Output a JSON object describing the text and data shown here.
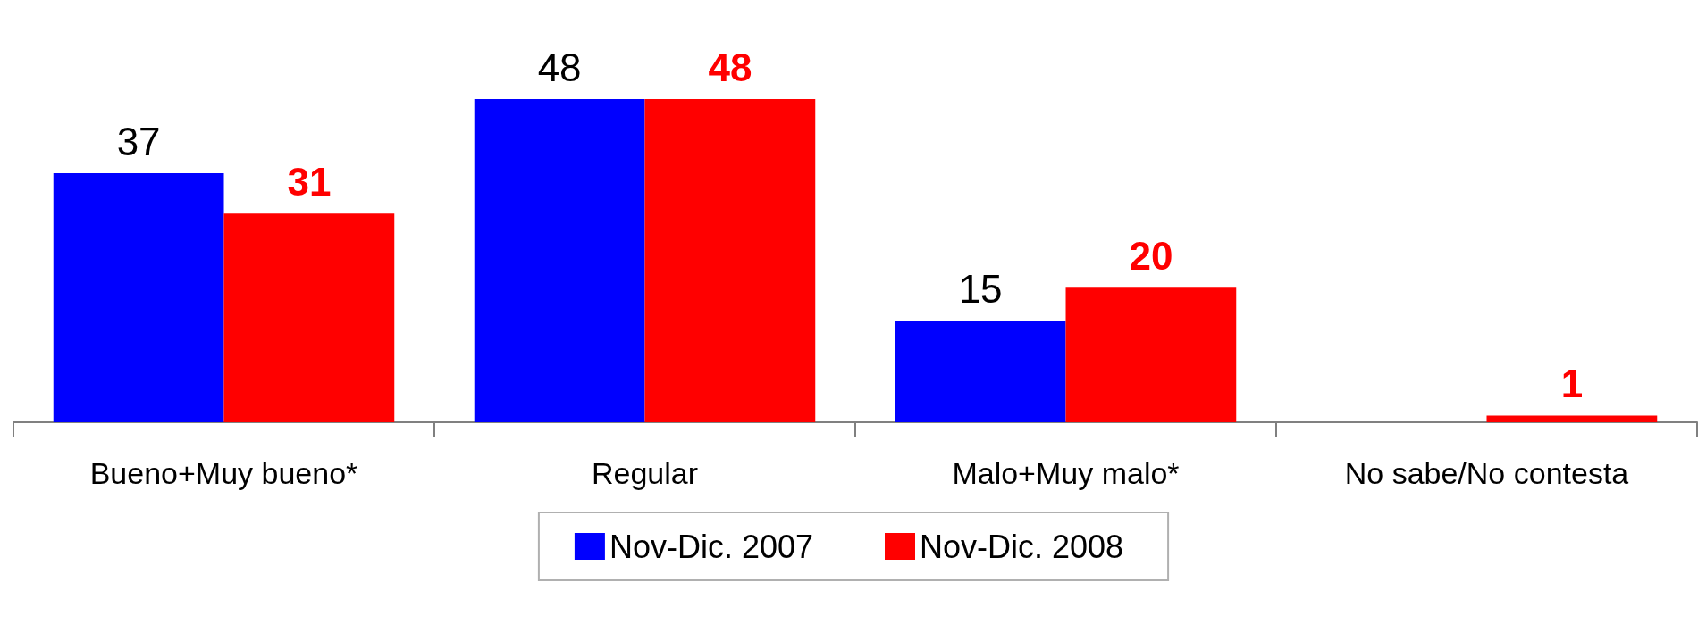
{
  "chart_data": {
    "type": "bar",
    "categories": [
      "Bueno+Muy bueno*",
      "Regular",
      "Malo+Muy malo*",
      "No sabe/No contesta"
    ],
    "series": [
      {
        "name": "Nov-Dic. 2007",
        "color": "#0000ff",
        "values": [
          37,
          48,
          15,
          null
        ]
      },
      {
        "name": "Nov-Dic. 2008",
        "color": "#ff0000",
        "values": [
          31,
          48,
          20,
          1
        ]
      }
    ],
    "data_labels": true,
    "legend": "bottom",
    "grid": false
  }
}
